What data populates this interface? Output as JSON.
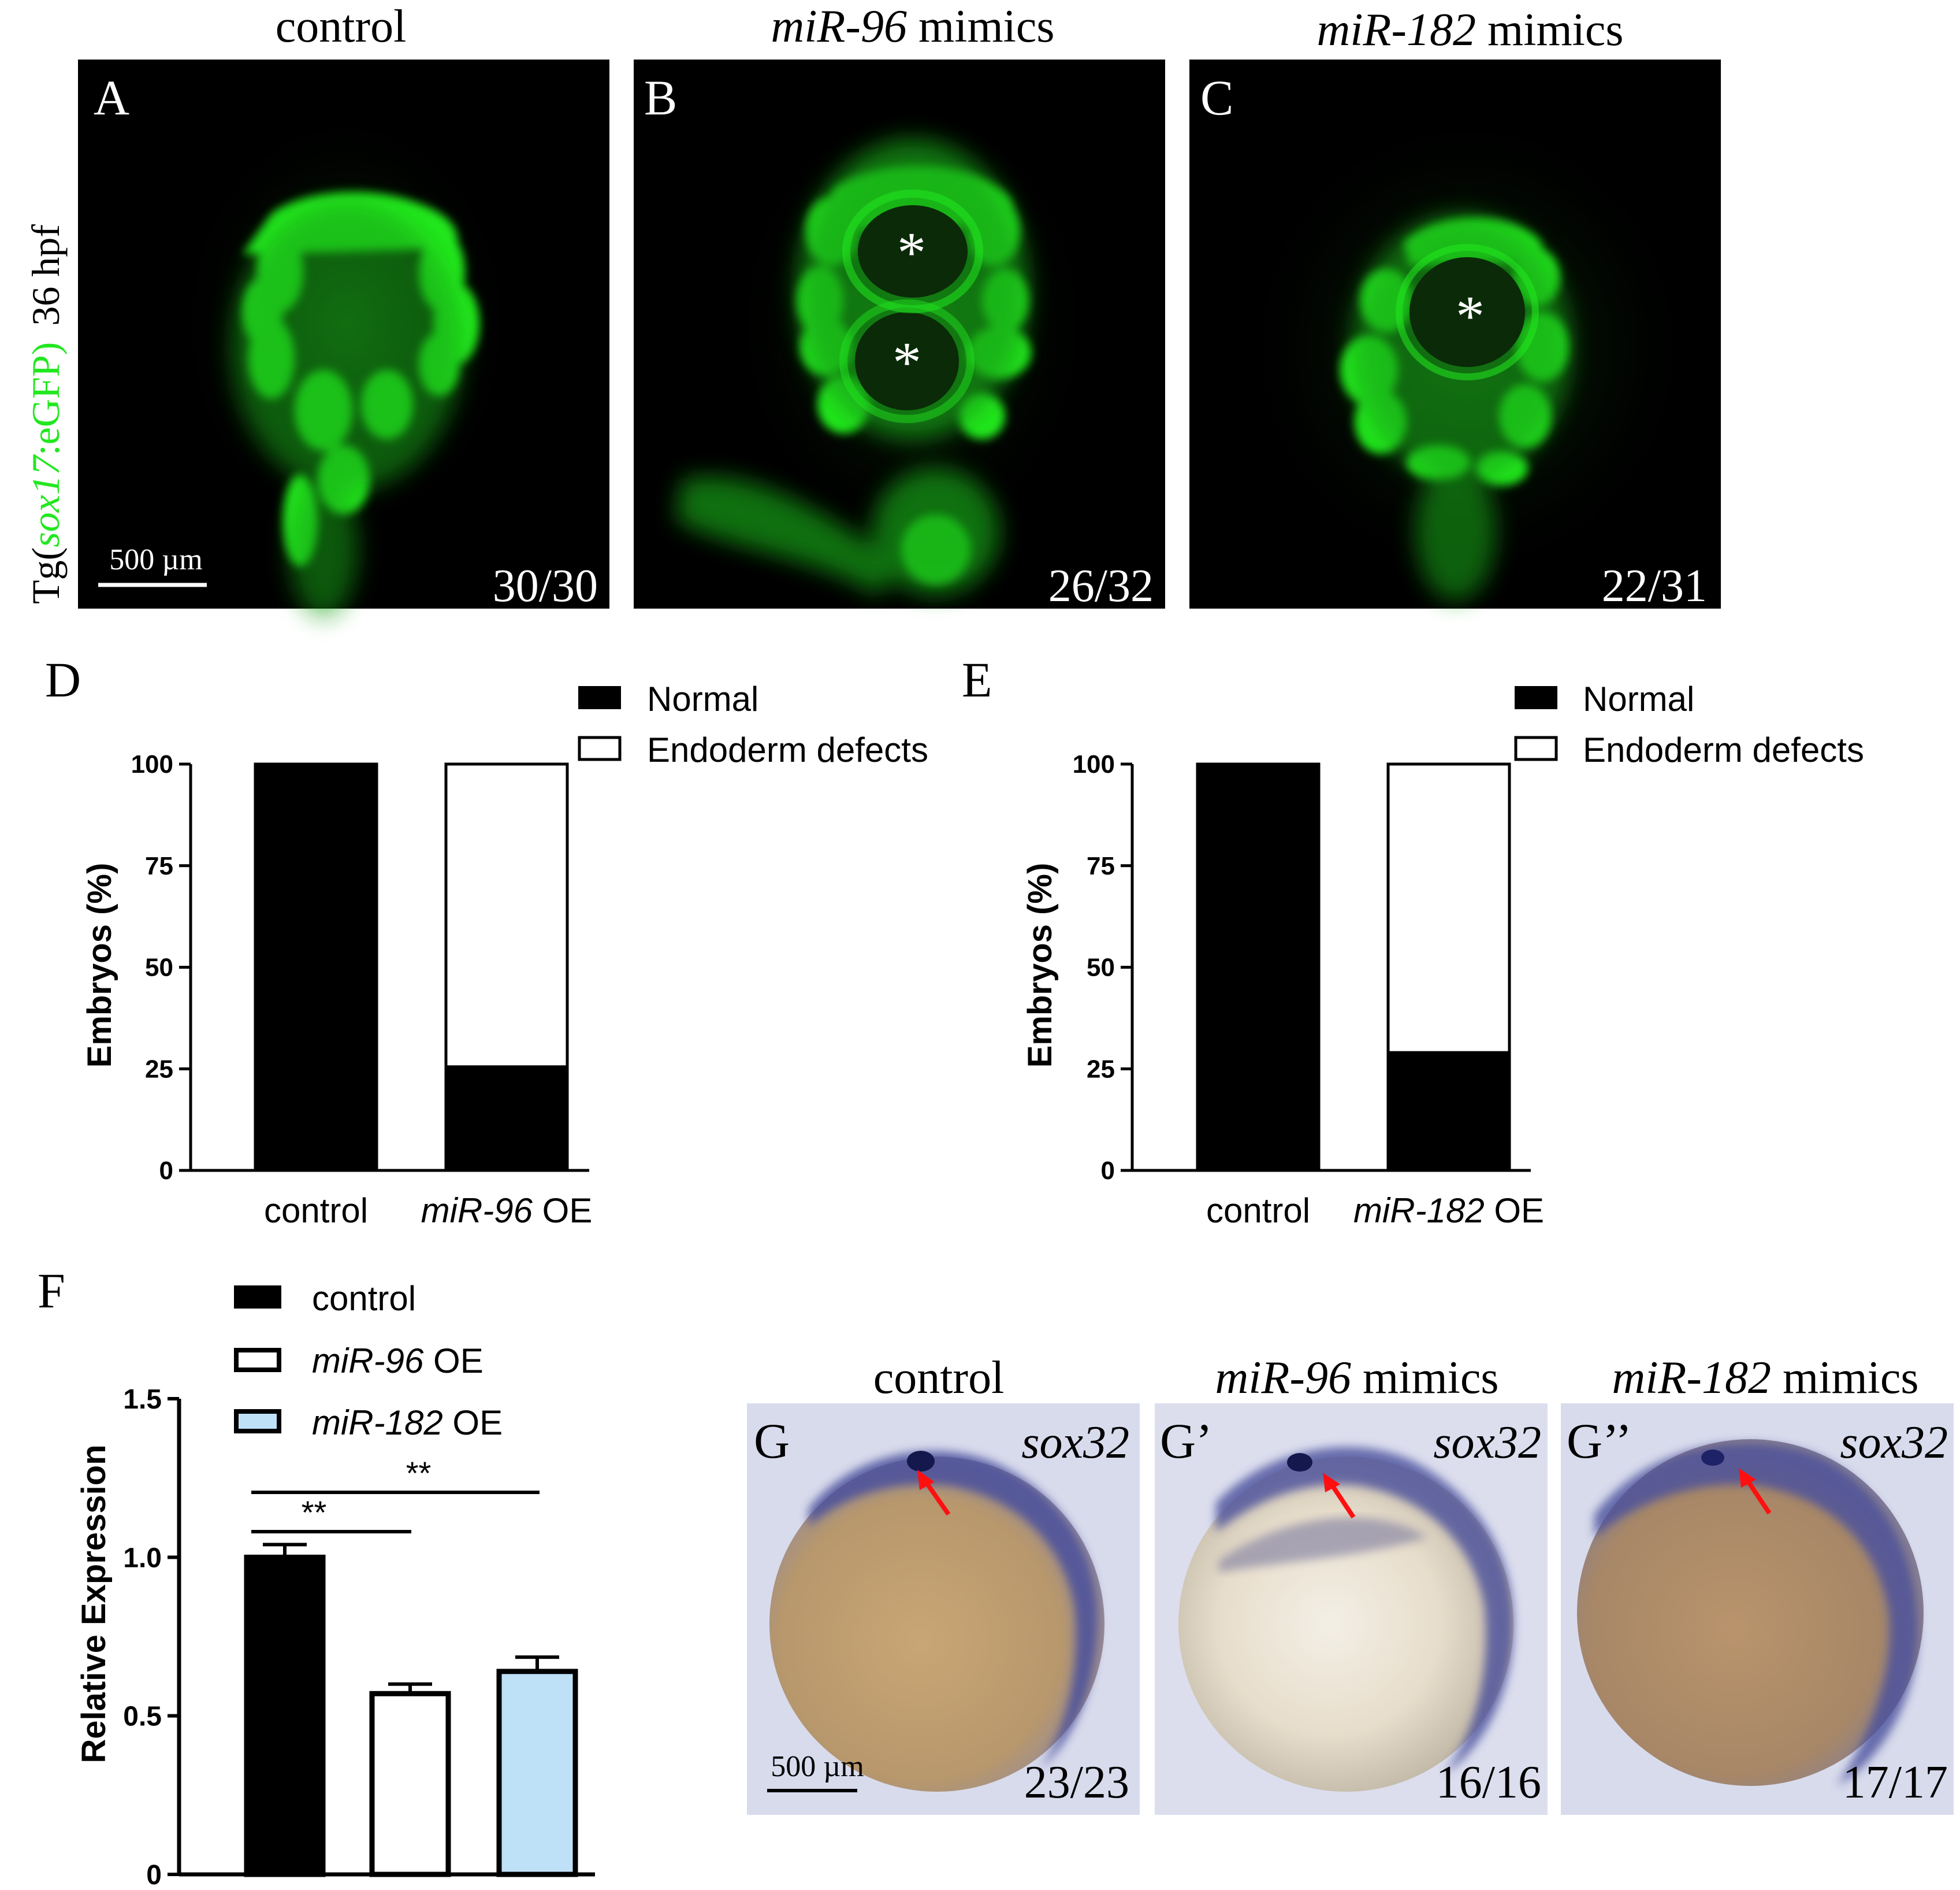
{
  "figure": {
    "row_label": {
      "prefix": "Tg(",
      "gene": "sox17",
      "suffix": ":eGFP)",
      "stage": "36 hpf"
    },
    "colors": {
      "gfp": "#22e81f",
      "arrow": "#ff1010",
      "light_blue": "#bfe1f7",
      "stain": "#3a3f96"
    },
    "top_panels": [
      {
        "letter": "A",
        "title_italic": "",
        "title_rest": "control",
        "count": "30/30",
        "scale_bar": "500 µm"
      },
      {
        "letter": "B",
        "title_italic": "miR-96",
        "title_rest": " mimics",
        "count": "26/32",
        "scale_bar": ""
      },
      {
        "letter": "C",
        "title_italic": "miR-182",
        "title_rest": " mimics",
        "count": "22/31",
        "scale_bar": ""
      }
    ],
    "bottom_panels": [
      {
        "letter": "G",
        "title_italic": "",
        "title_rest": "control",
        "gene": "sox32",
        "count": "23/23",
        "scale_bar": "500 µm"
      },
      {
        "letter": "G’",
        "title_italic": "miR-96",
        "title_rest": " mimics",
        "gene": "sox32",
        "count": "16/16",
        "scale_bar": ""
      },
      {
        "letter": "G’’",
        "title_italic": "miR-182",
        "title_rest": " mimics",
        "gene": "sox32",
        "count": "17/17",
        "scale_bar": ""
      }
    ]
  },
  "chart_data": [
    {
      "panel": "D",
      "type": "bar",
      "stacked": true,
      "ylabel": "Embryos (%)",
      "ylim": [
        0,
        100
      ],
      "yticks": [
        0,
        25,
        50,
        75,
        100
      ],
      "categories": [
        {
          "italic": "",
          "rest": "control"
        },
        {
          "italic": "miR-96",
          "rest": " OE"
        }
      ],
      "series": [
        {
          "name": "Normal",
          "color": "#000000",
          "values": [
            100,
            25.5
          ]
        },
        {
          "name": "Endoderm defects",
          "color": "#ffffff",
          "values": [
            0,
            74.5
          ]
        }
      ],
      "legend_position": "top-right"
    },
    {
      "panel": "E",
      "type": "bar",
      "stacked": true,
      "ylabel": "Embryos (%)",
      "ylim": [
        0,
        100
      ],
      "yticks": [
        0,
        25,
        50,
        75,
        100
      ],
      "categories": [
        {
          "italic": "",
          "rest": "control"
        },
        {
          "italic": "miR-182",
          "rest": " OE"
        }
      ],
      "series": [
        {
          "name": "Normal",
          "color": "#000000",
          "values": [
            100,
            29
          ]
        },
        {
          "name": "Endoderm defects",
          "color": "#ffffff",
          "values": [
            0,
            71
          ]
        }
      ],
      "legend_position": "top-right"
    },
    {
      "panel": "F",
      "type": "bar",
      "ylabel": "Relative Expression",
      "ylim": [
        0,
        1.5
      ],
      "yticks": [
        "0",
        "0.5",
        "1.0",
        "1.5"
      ],
      "ytick_values": [
        0,
        0.5,
        1.0,
        1.5
      ],
      "series": [
        {
          "italic": "",
          "rest": "control",
          "color": "#000000",
          "value": 1.0,
          "error": 0.04
        },
        {
          "italic": "miR-96",
          "rest": " OE",
          "color": "#ffffff",
          "value": 0.57,
          "error": 0.03
        },
        {
          "italic": "miR-182",
          "rest": " OE",
          "color": "#bfe1f7",
          "value": 0.64,
          "error": 0.045
        }
      ],
      "significance": [
        {
          "from": 0,
          "to": 1,
          "label": "**"
        },
        {
          "from": 0,
          "to": 2,
          "label": "**"
        }
      ],
      "legend_position": "top-left"
    }
  ]
}
